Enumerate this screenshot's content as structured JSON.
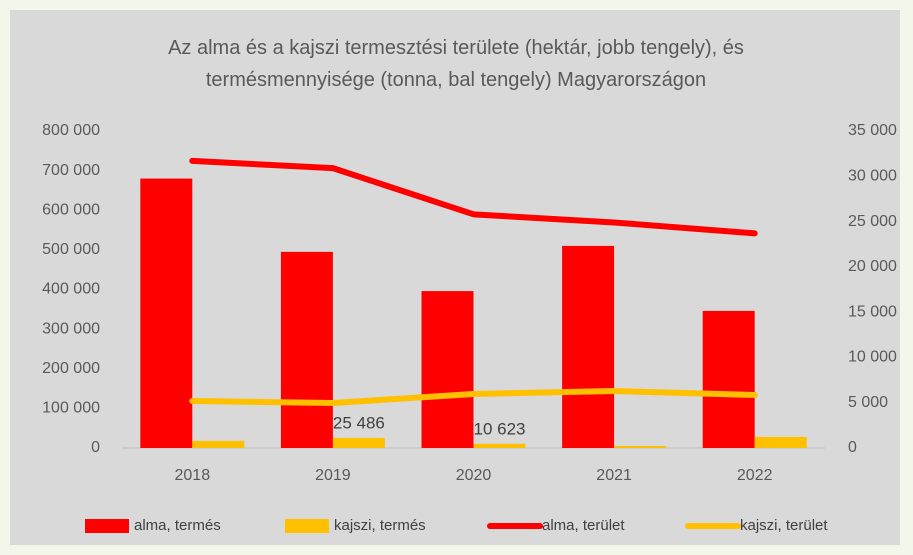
{
  "chart_data": {
    "type": "bar_line",
    "title": "Az alma és a kajszi termesztési területe (hektár, jobb tengely), és termésmennyisége (tonna, bal tengely) Magyarországon",
    "categories": [
      "2018",
      "2019",
      "2020",
      "2021",
      "2022"
    ],
    "series": [
      {
        "name": "alma, termés",
        "type": "bar",
        "color": "#ff0000",
        "values": [
          680000,
          495000,
          396000,
          510000,
          346000
        ]
      },
      {
        "name": "kajszi, termés",
        "type": "bar",
        "color": "#ffc000",
        "values": [
          18000,
          25486,
          10623,
          5000,
          28000
        ],
        "value_labels": [
          null,
          "25 486",
          "10 623",
          null,
          null
        ]
      },
      {
        "name": "alma, terület",
        "type": "line",
        "axis": "y2",
        "color": "#ff0000",
        "values": [
          31700,
          30900,
          25800,
          24900,
          23700
        ]
      },
      {
        "name": "kajszi, terület",
        "type": "line",
        "axis": "y2",
        "color": "#ffc000",
        "values": [
          5190,
          4970,
          5960,
          6290,
          5850
        ]
      }
    ],
    "ylim": [
      0,
      800000
    ],
    "yticks": [
      0,
      {
        "value": 100000,
        "label": "100 000"
      },
      {
        "value": 200000,
        "label": "200 000"
      },
      {
        "value": 300000,
        "label": "300 000"
      },
      {
        "value": 400000,
        "label": "400 000"
      },
      {
        "value": 500000,
        "label": "500 000"
      },
      {
        "value": 600000,
        "label": "600 000"
      },
      {
        "value": 700000,
        "label": "700 000"
      },
      {
        "value": 800000,
        "label": "800 000"
      }
    ],
    "y2lim": [
      0,
      35000
    ],
    "y2ticks": [
      0,
      {
        "value": 5000,
        "label": "5 000"
      },
      {
        "value": 10000,
        "label": "10 000"
      },
      {
        "value": 15000,
        "label": "15 000"
      },
      {
        "value": 20000,
        "label": "20 000"
      },
      {
        "value": 25000,
        "label": "25 000"
      },
      {
        "value": 30000,
        "label": "30 000"
      },
      {
        "value": 35000,
        "label": "35 000"
      }
    ],
    "grid": false,
    "legend": "bottom"
  }
}
